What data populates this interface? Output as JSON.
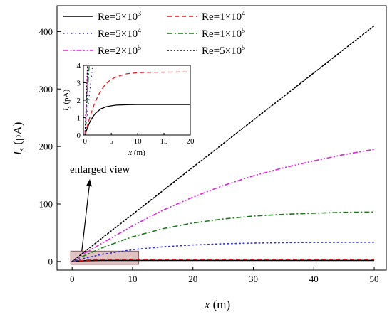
{
  "chart_data": {
    "type": "line",
    "xlabel_main": "x",
    "xlabel_unit": " (m)",
    "ylabel_main": "I",
    "ylabel_sub": "s",
    "ylabel_unit": " (pA)",
    "xlim": [
      -2.5,
      52
    ],
    "ylim": [
      -15,
      445
    ],
    "xticks": [
      0,
      10,
      20,
      30,
      40,
      50
    ],
    "yticks": [
      0,
      100,
      200,
      300,
      400
    ],
    "grid": false,
    "legend_placement": "top-left",
    "series": [
      {
        "name": "Re=5×10",
        "exp": "3",
        "color": "#000000",
        "dash": "solid",
        "x": [
          0,
          0.5,
          1,
          1.5,
          2,
          3,
          4,
          5,
          6,
          8,
          10,
          12,
          15,
          20,
          30,
          40,
          50
        ],
        "y": [
          0,
          0.45,
          0.8,
          1.05,
          1.25,
          1.5,
          1.62,
          1.68,
          1.72,
          1.74,
          1.75,
          1.75,
          1.75,
          1.75,
          1.75,
          1.75,
          1.75
        ]
      },
      {
        "name": "Re=1×10",
        "exp": "4",
        "color": "#e8141b",
        "dash": "dash",
        "x": [
          0,
          0.5,
          1,
          1.5,
          2,
          3,
          4,
          5,
          6,
          8,
          10,
          12,
          15,
          20,
          30,
          40,
          50
        ],
        "y": [
          0,
          0.58,
          1.1,
          1.55,
          1.95,
          2.55,
          2.95,
          3.2,
          3.35,
          3.52,
          3.58,
          3.6,
          3.61,
          3.62,
          3.62,
          3.62,
          3.62
        ]
      },
      {
        "name": "Re=5×10",
        "exp": "4",
        "color": "#3030d8",
        "dash": "dot",
        "x": [
          0,
          2,
          5,
          10,
          15,
          20,
          25,
          30,
          35,
          40,
          45,
          50
        ],
        "y": [
          0,
          5.5,
          12.5,
          20.5,
          25.5,
          28.8,
          30.8,
          32.0,
          32.7,
          33.1,
          33.3,
          33.4
        ]
      },
      {
        "name": "Re=1×10",
        "exp": "5",
        "color": "#1a7a1a",
        "dash": "dashdot",
        "x": [
          0,
          2,
          5,
          10,
          15,
          20,
          25,
          30,
          35,
          40,
          45,
          50
        ],
        "y": [
          0,
          10,
          24,
          43,
          57,
          67,
          74,
          79,
          82,
          84,
          85.5,
          86
        ]
      },
      {
        "name": "Re=2×10",
        "exp": "5",
        "color": "#e020e0",
        "dash": "dashdotdot",
        "x": [
          0,
          2,
          5,
          10,
          15,
          20,
          25,
          30,
          35,
          40,
          45,
          50
        ],
        "y": [
          0,
          14,
          32,
          62,
          89,
          112,
          132,
          149,
          163,
          175,
          186,
          195
        ]
      },
      {
        "name": "Re=5×10",
        "exp": "5",
        "color": "#000000",
        "dash": "densedot",
        "x": [
          0,
          5,
          10,
          15,
          20,
          25,
          30,
          35,
          40,
          45,
          50
        ],
        "y": [
          0,
          41,
          82,
          123,
          164,
          205,
          246,
          287,
          328,
          369,
          410
        ]
      }
    ],
    "inset": {
      "xlabel_main": "x",
      "xlabel_unit": " (m)",
      "ylabel_main": "I",
      "ylabel_sub": "s",
      "ylabel_unit": " (pA)",
      "xlim": [
        -0.3,
        20
      ],
      "ylim": [
        0,
        4
      ],
      "xticks": [
        0,
        5,
        10,
        15,
        20
      ],
      "yticks": [
        0,
        1,
        2,
        3,
        4
      ]
    },
    "highlight_region": {
      "x": [
        0,
        11
      ],
      "y": [
        -5,
        18
      ],
      "color": "#c89090"
    },
    "annotation": "enlarged view"
  }
}
